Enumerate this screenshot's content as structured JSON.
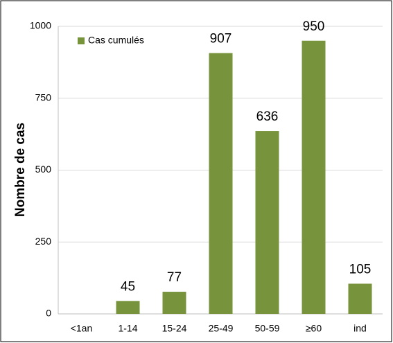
{
  "chart_data": {
    "type": "bar",
    "y_label": "Nombre de cas",
    "categories": [
      "<1an",
      "1-14",
      "15-24",
      "25-49",
      "50-59",
      "≥60",
      "ind"
    ],
    "series": [
      {
        "name": "Cas cumulés",
        "color": "#77933c",
        "values": [
          null,
          45,
          77,
          907,
          636,
          950,
          105
        ]
      }
    ],
    "ylim": [
      0,
      1000
    ],
    "yticks": [
      0,
      250,
      500,
      750,
      1000
    ],
    "grid": true,
    "legend": "top-left"
  }
}
